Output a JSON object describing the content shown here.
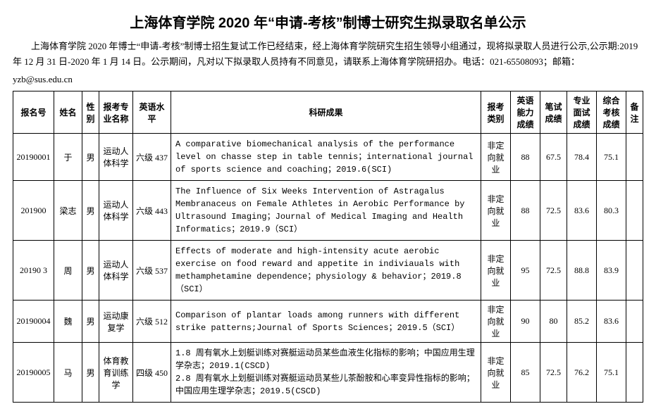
{
  "title": "上海体育学院 2020 年“申请-考核”制博士研究生拟录取名单公示",
  "intro": "上海体育学院 2020 年博士“申请-考核”制博士招生复试工作已经结束，经上海体育学院研究生招生领导小组通过，现将拟录取人员进行公示,公示期:2019 年 12 月 31 日-2020 年 1 月 14 日。公示期间，凡对以下拟录取人员持有不同意见，请联系上海体育学院研招办。电话：021-65508093；邮箱：",
  "email": "yzb@sus.edu.cn",
  "headers": {
    "id": "报名号",
    "name": "姓名",
    "gender": "性别",
    "major": "报考专业名称",
    "english": "英语水平",
    "research": "科研成果",
    "type": "报考类别",
    "eng_score": "英语能力成绩",
    "written": "笔试成绩",
    "interview": "专业面试成绩",
    "total": "综合考核成绩",
    "note": "备注"
  },
  "rows": [
    {
      "id": "20190001",
      "name": "于",
      "gender": "男",
      "major": "运动人体科学",
      "english": "六级 437",
      "research": "A comparative biomechanical analysis of the performance level on chasse step in table tennis；international journal of sports science and coaching；2019.6(SCI)",
      "type": "非定向就业",
      "eng_score": "88",
      "written": "67.5",
      "interview": "78.4",
      "total": "75.1",
      "note": ""
    },
    {
      "id": "201900",
      "name": "梁志",
      "gender": "男",
      "major": "运动人体科学",
      "english": "六级 443",
      "research": "The Influence of Six Weeks Intervention of Astragalus Membranaceus on Female Athletes in Aerobic Performance by Ultrasound Imaging；Journal of Medical Imaging and Health Informatics；2019.9（SCI）",
      "type": "非定向就业",
      "eng_score": "88",
      "written": "72.5",
      "interview": "83.6",
      "total": "80.3",
      "note": ""
    },
    {
      "id": "20190  3",
      "name": "周",
      "gender": "男",
      "major": "运动人体科学",
      "english": "六级 537",
      "research": "Effects of moderate and high-intensity acute aerobic exercise on food reward and appetite in indiviauals with methamphetamine dependence；physiology & behavior；2019.8（SCI）",
      "type": "非定向就业",
      "eng_score": "95",
      "written": "72.5",
      "interview": "88.8",
      "total": "83.9",
      "note": ""
    },
    {
      "id": "20190004",
      "name": "魏",
      "gender": "男",
      "major": "运动康复学",
      "english": "六级 512",
      "research": "Comparison of plantar loads among runners with different strike patterns;Journal of Sports Sciences；2019.5（SCI）",
      "type": "非定向就业",
      "eng_score": "90",
      "written": "80",
      "interview": "85.2",
      "total": "83.6",
      "note": ""
    },
    {
      "id": "20190005",
      "name": "马",
      "gender": "男",
      "major": "体育教育训练学",
      "english": "四级 450",
      "research": "1.8 周有氧水上划艇训练对赛艇运动员某些血液生化指标的影响；中国应用生理学杂志；2019.1(CSCD)\n2.8 周有氧水上划艇训练对赛艇运动员某些儿茶酚胺和心率变异性指标的影响；中国应用生理学杂志；2019.5(CSCD)",
      "type": "非定向就业",
      "eng_score": "85",
      "written": "72.5",
      "interview": "76.2",
      "total": "75.1",
      "note": ""
    }
  ]
}
